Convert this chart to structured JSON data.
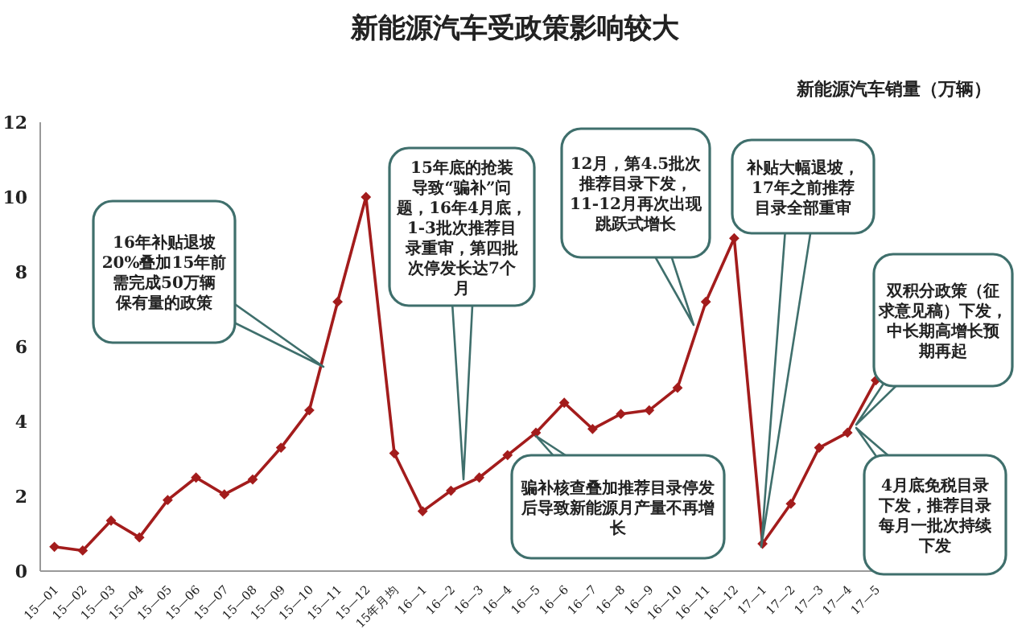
{
  "chart_data": {
    "type": "line",
    "title": "新能源汽车受政策影响较大",
    "ylabel": "新能源汽车销量（万辆）",
    "categories": [
      "15—01",
      "15—02",
      "15—03",
      "15—04",
      "15—05",
      "15—06",
      "15—07",
      "15—08",
      "15—09",
      "15—10",
      "15—11",
      "15—12",
      "15年月均",
      "16—1",
      "16—2",
      "16—3",
      "16—4",
      "16—5",
      "16—6",
      "16—7",
      "16—8",
      "16—9",
      "16—10",
      "16—11",
      "16—12",
      "17—1",
      "17—2",
      "17—3",
      "17—4",
      "17—5"
    ],
    "series": [
      {
        "color": "#a31c1c",
        "values": [
          0.65,
          0.55,
          1.35,
          0.9,
          1.9,
          2.5,
          2.05,
          2.45,
          3.3,
          4.3,
          7.2,
          10.0,
          3.15,
          1.6,
          2.15,
          2.5,
          3.1,
          3.7,
          4.5,
          3.8,
          4.2,
          4.3,
          4.9,
          7.2,
          8.9,
          0.73,
          1.8,
          3.3,
          3.7,
          5.1
        ]
      }
    ],
    "ylim": [
      0,
      12
    ],
    "yticks": [
      0,
      2,
      4,
      6,
      8,
      10,
      12
    ],
    "grid": false,
    "legend": false,
    "marker": "diamond",
    "line_style": "solid",
    "annotations": [
      "16年补贴退坡20%叠加15年前需完成50万辆保有量的政策",
      "15年底的抢装导致“骗补”问题，16年4月底，1-3批次推荐目录重审，第四批次停发长达7个月",
      "骗补核查叠加推荐目录停发后导致新能源月产量不再增长",
      "12月，第4.5批次推荐目录下发，11-12月再次出现跳跃式增长",
      "补贴大幅退坡，17年之前推荐目录全部重审",
      "4月底免税目录下发，推荐目录每月一批次持续下发",
      "双积分政策（征求意见稿）下发，中长期高增长预期再起"
    ]
  }
}
